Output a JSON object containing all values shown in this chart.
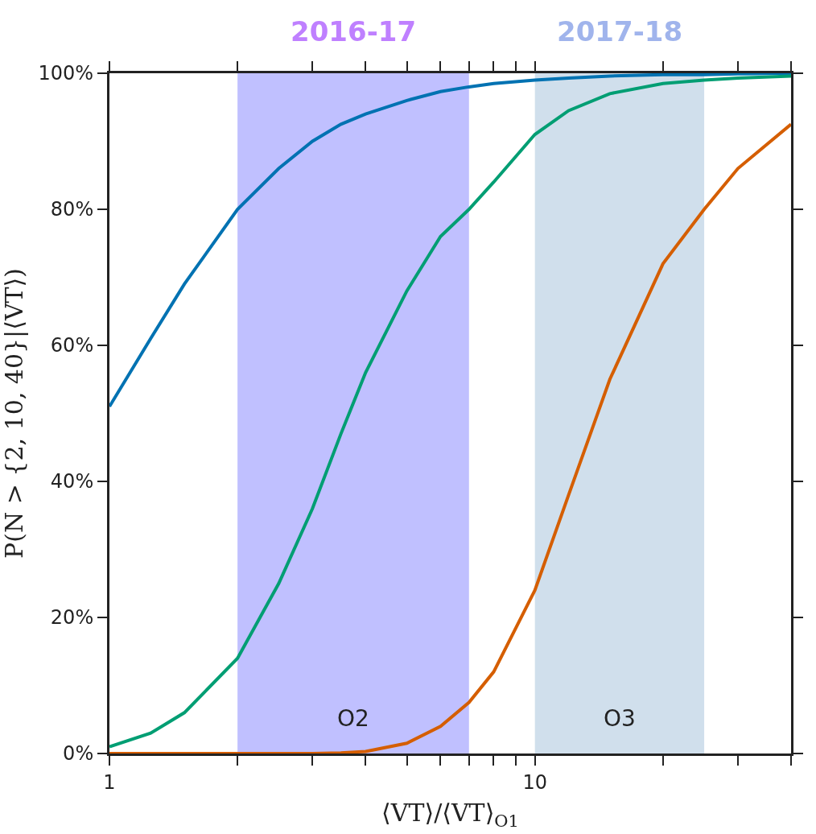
{
  "chart_data": {
    "type": "line",
    "xlabel": "⟨VT⟩/⟨VT⟩$_{O1}$",
    "ylabel": "P(N > {2, 10, 40}|⟨VT⟩)",
    "log": "x",
    "grid": false,
    "marker": "none",
    "line_style": "solid",
    "xlim": [
      1,
      40
    ],
    "xticks": [
      1,
      {
        "value": 2,
        "label": null
      },
      {
        "value": 3,
        "label": null
      },
      {
        "value": 4,
        "label": null
      },
      {
        "value": 5,
        "label": null
      },
      {
        "value": 6,
        "label": null
      },
      {
        "value": 7,
        "label": null
      },
      {
        "value": 8,
        "label": null
      },
      {
        "value": 9,
        "label": null
      },
      10,
      {
        "value": 20,
        "label": null
      },
      {
        "value": 30,
        "label": null
      },
      {
        "value": 40,
        "label": null
      }
    ],
    "ylim": [
      0,
      100
    ],
    "yticks": [
      {
        "value": 0,
        "label": "0%"
      },
      {
        "value": 20,
        "label": "20%"
      },
      {
        "value": 40,
        "label": "40%"
      },
      {
        "value": 60,
        "label": "60%"
      },
      {
        "value": 80,
        "label": "80%"
      },
      {
        "value": 100,
        "label": "100%"
      }
    ],
    "bands": [
      {
        "axis": "x",
        "from": 2,
        "to": 7,
        "label": "2016-17",
        "color": "#c0c0ff"
      },
      {
        "axis": "x",
        "from": 10,
        "to": 25,
        "label": "2017-18",
        "color": "#d0dfec"
      }
    ],
    "annotations": [
      "O2",
      "O3"
    ],
    "x": [
      1,
      1.25,
      1.5,
      2,
      2.5,
      3,
      3.5,
      4,
      5,
      6,
      7,
      8,
      10,
      12,
      15,
      20,
      25,
      30,
      40
    ],
    "series": [
      {
        "color": "#0072b2",
        "values": [
          51,
          61,
          69,
          80,
          86,
          90,
          92.5,
          94,
          96,
          97.3,
          98,
          98.5,
          99,
          99.3,
          99.6,
          99.8,
          99.8,
          99.9,
          100
        ]
      },
      {
        "color": "#009e73",
        "values": [
          1,
          3,
          6,
          14,
          25,
          36,
          47,
          56,
          68,
          76,
          80,
          84,
          91,
          94.5,
          97,
          98.5,
          99,
          99.3,
          99.6
        ]
      },
      {
        "color": "#d55e00",
        "values": [
          0,
          0,
          0,
          0,
          0,
          0,
          0.1,
          0.3,
          1.5,
          4,
          7.5,
          12,
          24,
          38,
          55,
          72,
          80,
          86,
          92.5
        ]
      }
    ]
  }
}
